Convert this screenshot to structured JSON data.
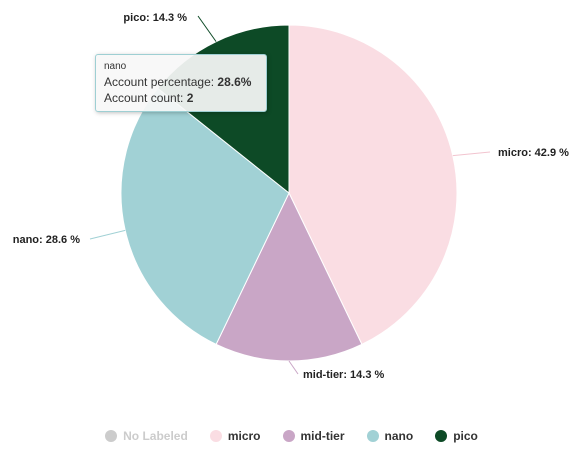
{
  "chart_data": {
    "type": "pie",
    "title": "",
    "slices": [
      {
        "name": "micro",
        "value": 42.9,
        "label": "micro: 42.9 %",
        "color": "#fadde3"
      },
      {
        "name": "mid-tier",
        "value": 14.3,
        "label": "mid-tier: 14.3 %",
        "color": "#c9a6c6"
      },
      {
        "name": "nano",
        "value": 28.6,
        "label": "nano: 28.6 %",
        "color": "#a1d1d5"
      },
      {
        "name": "pico",
        "value": 14.3,
        "label": "pico: 14.3 %",
        "color": "#0d4a26"
      }
    ],
    "legend": {
      "placement": "bottom",
      "items": [
        {
          "label": "No Labeled",
          "color": "#cccccc",
          "hidden": true
        },
        {
          "label": "micro",
          "color": "#fadde3",
          "hidden": false
        },
        {
          "label": "mid-tier",
          "color": "#c9a6c6",
          "hidden": false
        },
        {
          "label": "nano",
          "color": "#a1d1d5",
          "hidden": false
        },
        {
          "label": "pico",
          "color": "#0d4a26",
          "hidden": false
        }
      ]
    },
    "tooltip": {
      "title": "nano",
      "rows": [
        {
          "label": "Account percentage: ",
          "value": "28.6%"
        },
        {
          "label": "Account count: ",
          "value": "2"
        }
      ]
    }
  }
}
